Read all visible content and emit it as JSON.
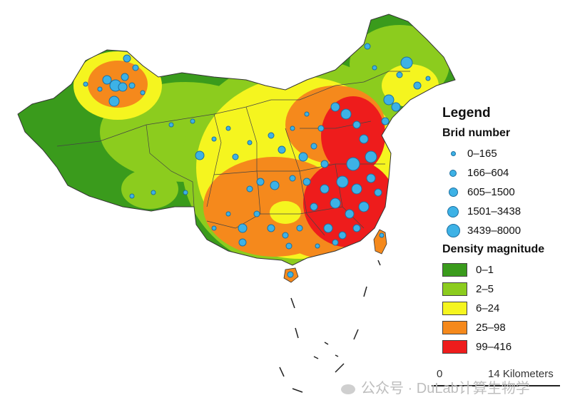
{
  "legend": {
    "title": "Legend",
    "bird_title": "Brid number",
    "bird_classes": [
      {
        "label": "0–165",
        "size": 5
      },
      {
        "label": "166–604",
        "size": 8
      },
      {
        "label": "605–1500",
        "size": 11
      },
      {
        "label": "1501–3438",
        "size": 14
      },
      {
        "label": "3439–8000",
        "size": 17
      }
    ],
    "density_title": "Density magnitude",
    "density_classes": [
      {
        "label": "0–1",
        "color": "#3a9b1c"
      },
      {
        "label": "2–5",
        "color": "#8ccc1e"
      },
      {
        "label": "6–24",
        "color": "#f5f51f"
      },
      {
        "label": "25–98",
        "color": "#f5891c"
      },
      {
        "label": "99–416",
        "color": "#ee1c1c"
      }
    ]
  },
  "scale": {
    "zero": "0",
    "distance": "14 Kilometers"
  },
  "watermark": "公众号 · DuLab计算生物学"
}
